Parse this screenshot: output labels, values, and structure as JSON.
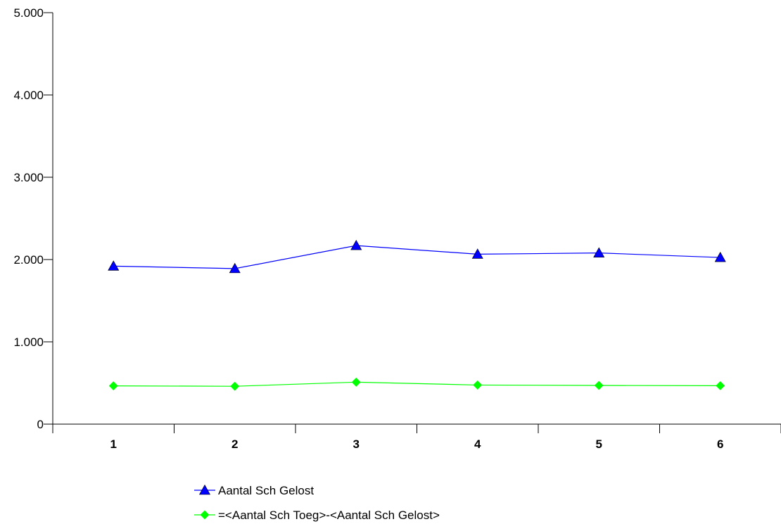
{
  "chart_data": {
    "type": "line",
    "categories": [
      "1",
      "2",
      "3",
      "4",
      "5",
      "6"
    ],
    "ylim": [
      0,
      5000
    ],
    "yticks": [
      0,
      1000,
      2000,
      3000,
      4000,
      5000
    ],
    "ytick_labels": [
      "0",
      "1.000",
      "2.000",
      "3.000",
      "4.000",
      "5.000"
    ],
    "grid": false,
    "legend_position": "bottom",
    "series": [
      {
        "name": "Aantal Sch Gelost",
        "values": [
          1920,
          1890,
          2170,
          2065,
          2080,
          2025
        ],
        "color": "#0000ff",
        "marker": "triangle"
      },
      {
        "name": "=<Aantal Sch Toeg>-<Aantal Sch Gelost>",
        "values": [
          465,
          460,
          510,
          475,
          470,
          467
        ],
        "color": "#00ff00",
        "marker": "diamond"
      }
    ]
  }
}
